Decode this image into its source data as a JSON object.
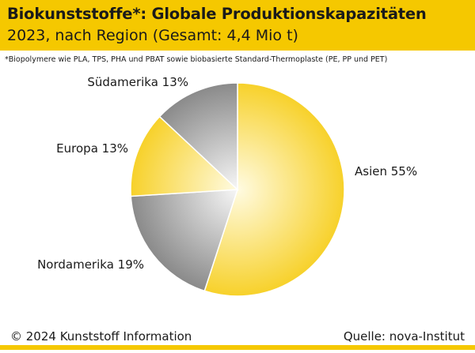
{
  "header": {
    "title": "Biokunststoffe*: Globale Produktionskapazitäten",
    "subtitle": "2023, nach Region (Gesamt: 4,4 Mio t)"
  },
  "footnote": "*Biopolymere wie PLA, TPS, PHA und PBAT sowie biobasierte Standard-Thermoplaste (PE, PP und PET)",
  "footer": {
    "copyright": "© 2024 Kunststoff Information",
    "source": "Quelle: nova-Institut"
  },
  "colors": {
    "accent": "#f5c800",
    "asien": "#f7d12a",
    "nordamerika": "#8f8f8f",
    "europa": "#f7d12a",
    "suedamerika": "#9a9a9a"
  },
  "chart_data": {
    "type": "pie",
    "title": "Biokunststoffe*: Globale Produktionskapazitäten",
    "subtitle": "2023, nach Region (Gesamt: 4,4 Mio t)",
    "legend": "none",
    "slices": [
      {
        "label": "Asien 55%",
        "name": "Asien",
        "value": 55,
        "color": "#f7d12a"
      },
      {
        "label": "Nordamerika 19%",
        "name": "Nordamerika",
        "value": 19,
        "color": "#8f8f8f"
      },
      {
        "label": "Europa 13%",
        "name": "Europa",
        "value": 13,
        "color": "#f7d12a"
      },
      {
        "label": "Südamerika 13%",
        "name": "Südamerika",
        "value": 13,
        "color": "#9a9a9a"
      }
    ]
  }
}
